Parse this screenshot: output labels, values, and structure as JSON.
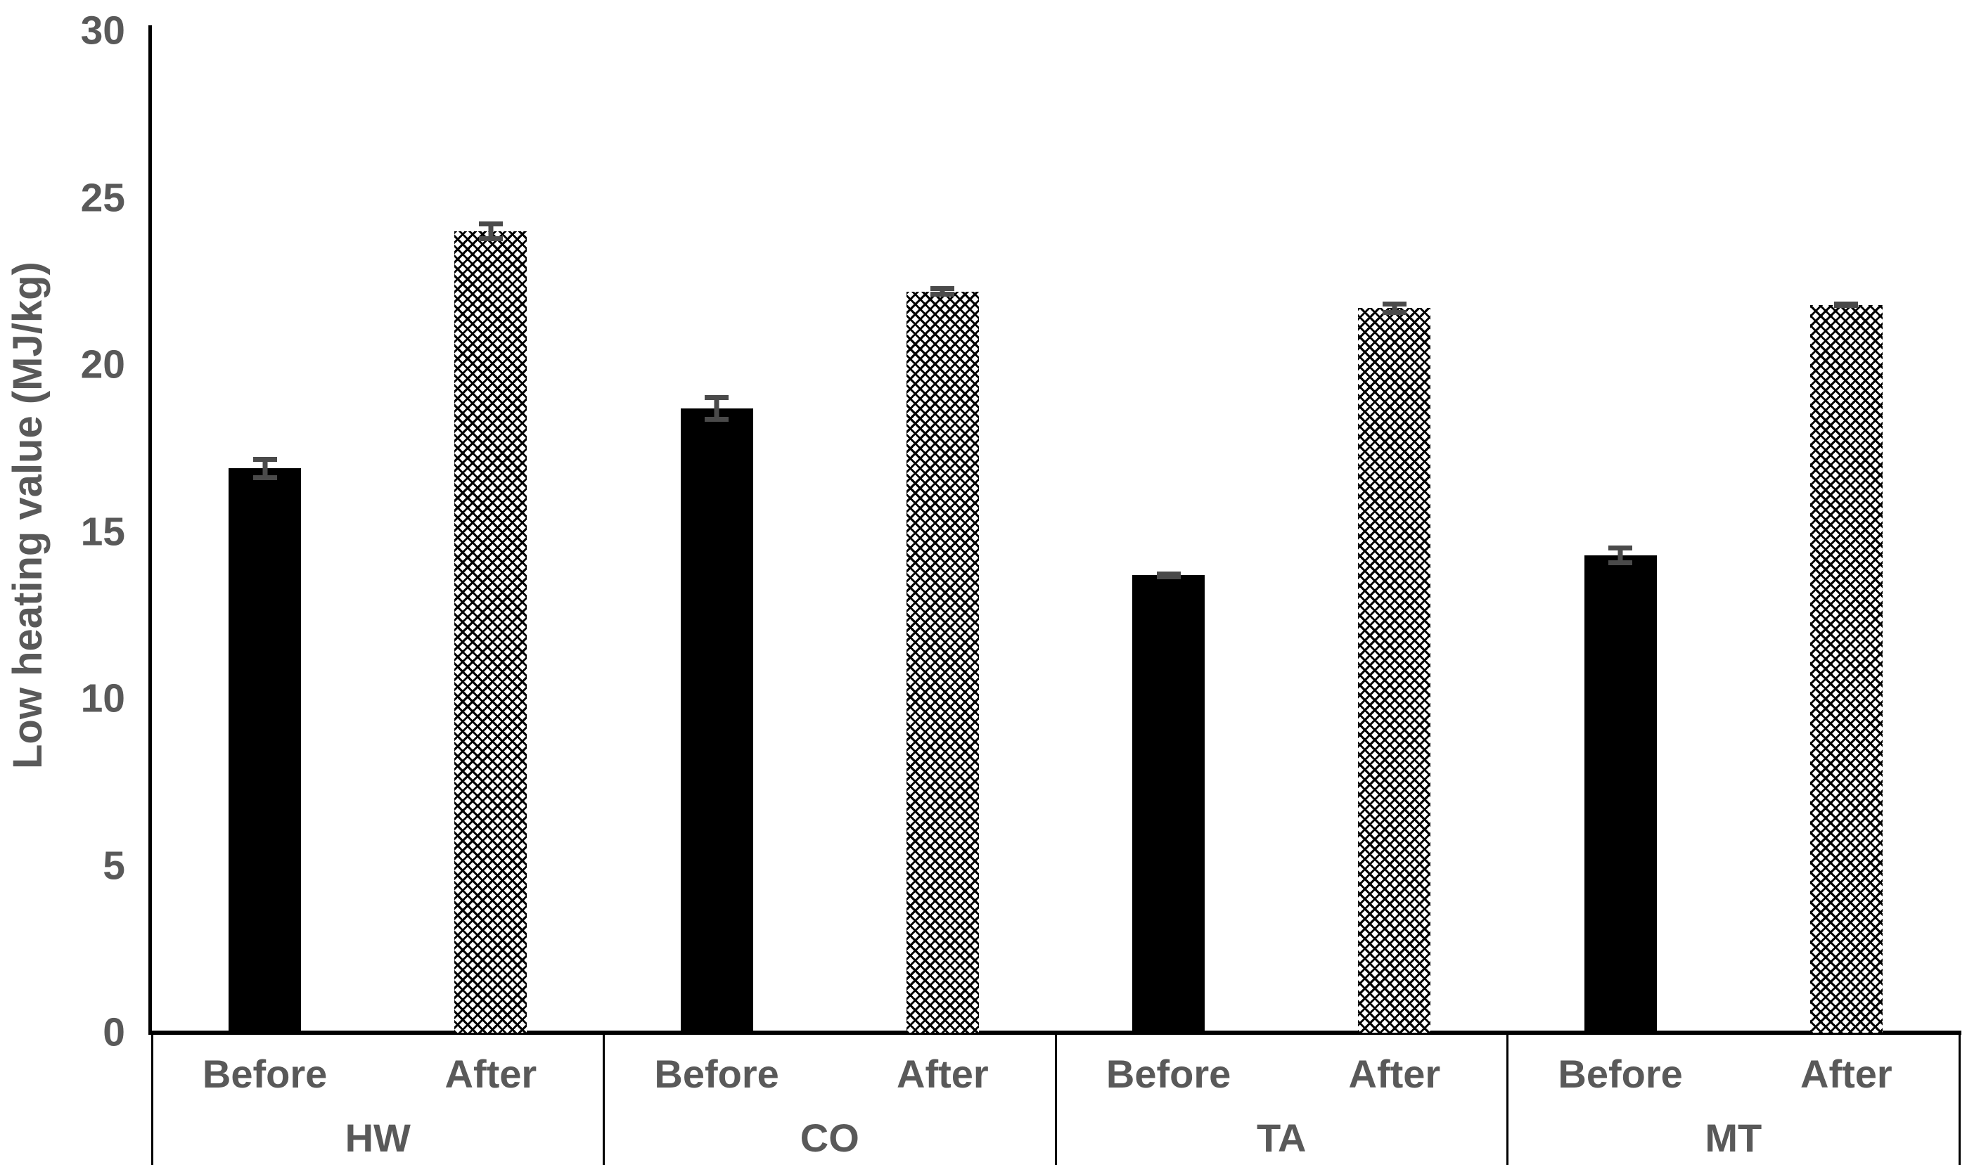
{
  "chart_data": {
    "type": "bar",
    "title": "",
    "xlabel": "",
    "ylabel": "Low heating value (MJ/kg)",
    "ylim": [
      0,
      30
    ],
    "yticks": [
      "0",
      "5",
      "10",
      "15",
      "20",
      "25",
      "30"
    ],
    "grid": false,
    "legend": "none",
    "groups": [
      "HW",
      "CO",
      "TA",
      "MT"
    ],
    "bar_labels": [
      "Before",
      "After"
    ],
    "series": [
      {
        "name": "Before",
        "style": "solid-black",
        "values": [
          16.9,
          18.7,
          13.7,
          14.3
        ],
        "errors": [
          0.35,
          0.4,
          0.12,
          0.3
        ]
      },
      {
        "name": "After",
        "style": "crosshatch-pattern",
        "values": [
          24.0,
          22.2,
          21.7,
          21.8
        ],
        "errors": [
          0.3,
          0.15,
          0.2,
          0.1
        ]
      }
    ]
  },
  "colors": {
    "background": "#ffffff",
    "axis": "#000000",
    "label_text": "#595959",
    "bar_before": "#000000",
    "bar_after_pattern": "#000000 on #ffffff",
    "error_bar": "#4a4a4a"
  }
}
